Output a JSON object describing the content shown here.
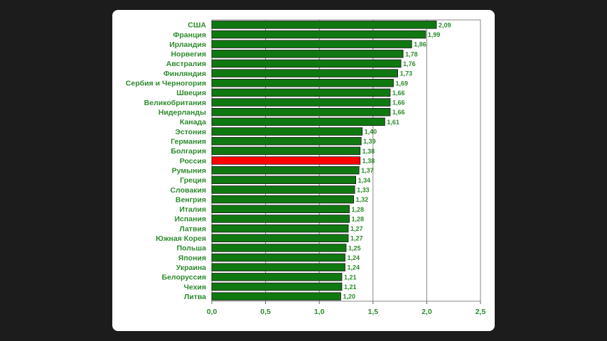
{
  "chart_data": {
    "type": "bar",
    "orientation": "horizontal",
    "title": "",
    "xlabel": "",
    "ylabel": "",
    "xlim": [
      0,
      2.5
    ],
    "ticks": [
      "0,0",
      "0,5",
      "1,0",
      "1,5",
      "2,0",
      "2,5"
    ],
    "tick_values": [
      0,
      0.5,
      1.0,
      1.5,
      2.0,
      2.5
    ],
    "grid": "vertical",
    "bar_color": "#107810",
    "highlight_color": "#ff0000",
    "highlight_category": "Россия",
    "categories": [
      "США",
      "Франция",
      "Ирландия",
      "Норвегия",
      "Австралия",
      "Финляндия",
      "Сербия и Черногория",
      "Швеция",
      "Великобритания",
      "Нидерланды",
      "Канада",
      "Эстония",
      "Германия",
      "Болгария",
      "Россия",
      "Румыния",
      "Греция",
      "Словакия",
      "Венгрия",
      "Италия",
      "Испания",
      "Латвия",
      "Южная Корея",
      "Польша",
      "Япония",
      "Украина",
      "Белоруссия",
      "Чехия",
      "Литва"
    ],
    "values": [
      2.09,
      1.99,
      1.86,
      1.78,
      1.76,
      1.73,
      1.69,
      1.66,
      1.66,
      1.66,
      1.61,
      1.4,
      1.39,
      1.38,
      1.38,
      1.37,
      1.34,
      1.33,
      1.32,
      1.28,
      1.28,
      1.27,
      1.27,
      1.25,
      1.24,
      1.24,
      1.21,
      1.21,
      1.2
    ],
    "value_labels": [
      "2,09",
      "1,99",
      "1,86",
      "1,78",
      "1,76",
      "1,73",
      "1,69",
      "1,66",
      "1,66",
      "1,66",
      "1,61",
      "1,40",
      "1,39",
      "1,38",
      "1,38",
      "1,37",
      "1,34",
      "1,33",
      "1,32",
      "1,28",
      "1,28",
      "1,27",
      "1,27",
      "1,25",
      "1,24",
      "1,24",
      "1,21",
      "1,21",
      "1,20"
    ]
  }
}
